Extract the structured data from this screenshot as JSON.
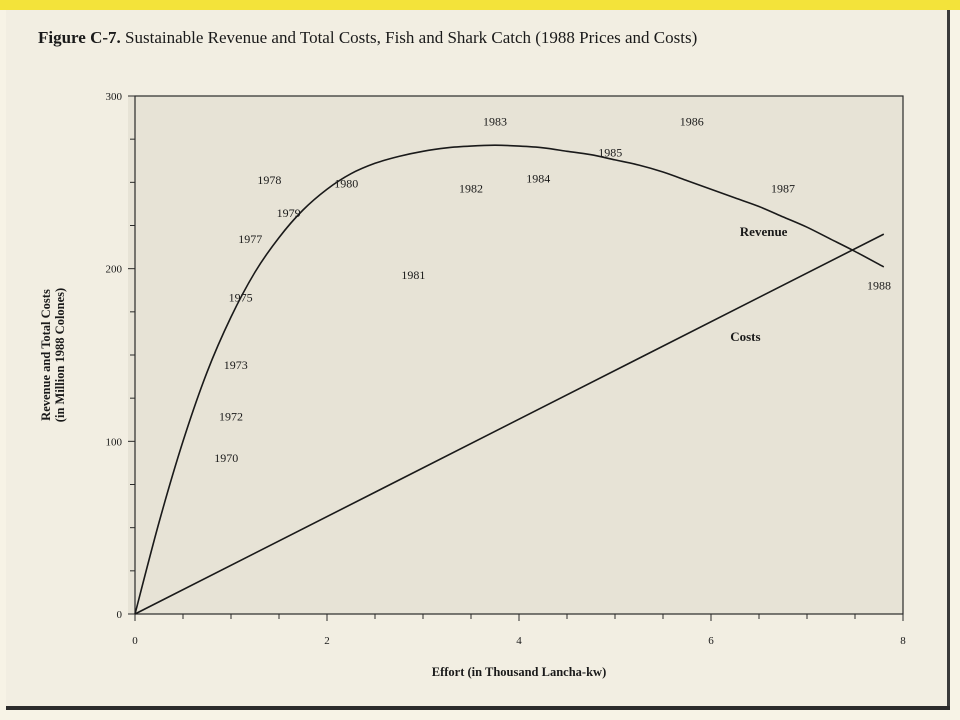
{
  "figure": {
    "label": "Figure C-7.",
    "title": "Sustainable Revenue and Total Costs, Fish and Shark Catch (1988 Prices and Costs)"
  },
  "chart_data": {
    "type": "line",
    "xlabel": "Effort (in Thousand Lancha-kw)",
    "ylabel_line1": "Revenue and Total Costs",
    "ylabel_line2": "(in Million 1988 Colones)",
    "xlim": [
      0,
      8
    ],
    "ylim": [
      0,
      300
    ],
    "xticks": [
      0,
      2,
      4,
      6,
      8
    ],
    "yticks": [
      0,
      100,
      200,
      300
    ],
    "grid": false,
    "series": [
      {
        "name": "Revenue",
        "color": "#1a1a1a",
        "x": [
          0,
          0.25,
          0.5,
          0.75,
          1.0,
          1.25,
          1.5,
          1.75,
          2.0,
          2.25,
          2.5,
          2.75,
          3.0,
          3.25,
          3.5,
          3.75,
          4.0,
          4.25,
          4.5,
          4.75,
          5.0,
          5.25,
          5.5,
          5.75,
          6.0,
          6.25,
          6.5,
          6.75,
          7.0,
          7.25,
          7.5,
          7.8
        ],
        "values": [
          0,
          53,
          100,
          140,
          172,
          198,
          218,
          234,
          246,
          255,
          261,
          265,
          268,
          270,
          271,
          271.5,
          271,
          270,
          268,
          266,
          263,
          260,
          256,
          251,
          246,
          241,
          236,
          230,
          224,
          217,
          210,
          201
        ]
      },
      {
        "name": "Costs",
        "color": "#1a1a1a",
        "x": [
          0,
          7.8
        ],
        "values": [
          0,
          220
        ]
      }
    ],
    "annotations": [
      {
        "text": "1970",
        "x": 0.95,
        "y": 88
      },
      {
        "text": "1972",
        "x": 1.0,
        "y": 112
      },
      {
        "text": "1973",
        "x": 1.05,
        "y": 142
      },
      {
        "text": "1975",
        "x": 1.1,
        "y": 181
      },
      {
        "text": "1977",
        "x": 1.2,
        "y": 215
      },
      {
        "text": "1978",
        "x": 1.4,
        "y": 249
      },
      {
        "text": "1979",
        "x": 1.6,
        "y": 230
      },
      {
        "text": "1980",
        "x": 2.2,
        "y": 247
      },
      {
        "text": "1981",
        "x": 2.9,
        "y": 194
      },
      {
        "text": "1982",
        "x": 3.5,
        "y": 244
      },
      {
        "text": "1983",
        "x": 3.75,
        "y": 283
      },
      {
        "text": "1984",
        "x": 4.2,
        "y": 250
      },
      {
        "text": "1985",
        "x": 4.95,
        "y": 265
      },
      {
        "text": "1986",
        "x": 5.8,
        "y": 283
      },
      {
        "text": "1987",
        "x": 6.75,
        "y": 244
      },
      {
        "text": "1988",
        "x": 7.75,
        "y": 188
      }
    ],
    "series_labels": [
      {
        "text": "Revenue",
        "x": 6.3,
        "y": 219
      },
      {
        "text": "Costs",
        "x": 6.2,
        "y": 158
      }
    ]
  }
}
